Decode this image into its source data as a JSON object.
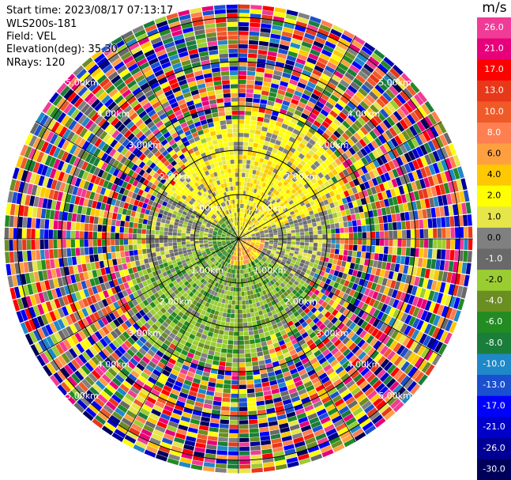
{
  "header": {
    "start_time": "Start time: 2023/08/17 07:13:17",
    "site": "WLS200s-181",
    "field": "Field: VEL",
    "elevation": "Elevation(deg): 35.30",
    "nrays": "NRays: 120"
  },
  "chart_data": {
    "type": "polar-ppi",
    "field": "VEL",
    "units": "m/s",
    "nrays": 120,
    "range_rings_km": [
      1,
      2,
      3,
      4,
      5
    ],
    "ring_labels": [
      "1.00km",
      "2.00km",
      "3.00km",
      "4.00km",
      "5.00km"
    ],
    "max_range_km": 5.3,
    "colorbar": {
      "title": "m/s",
      "ticks": [
        "26.0",
        "21.0",
        "17.0",
        "13.0",
        "10.0",
        "8.0",
        "6.0",
        "4.0",
        "2.0",
        "1.0",
        "0.0",
        "-1.0",
        "-2.0",
        "-4.0",
        "-6.0",
        "-8.0",
        "-10.0",
        "-13.0",
        "-17.0",
        "-21.0",
        "-26.0",
        "-30.0"
      ],
      "colors": [
        "#f03c96",
        "#e8007a",
        "#ff0000",
        "#e8381a",
        "#f05a28",
        "#ff7f50",
        "#ffa040",
        "#ffc800",
        "#ffff00",
        "#e6e64a",
        "#808080",
        "#696969",
        "#9acd32",
        "#6b8e23",
        "#228b22",
        "#1a7e3a",
        "#1e88c8",
        "#1a50d0",
        "#0000ff",
        "#0000c8",
        "#000096",
        "#00005a"
      ]
    },
    "near_field": {
      "north_sector": "positive (yellow/orange) to 2.8 km",
      "south_sector": "negative (green) to 2.5 km",
      "west_sector": "near-zero (grey)",
      "east_sector": "near-zero (grey)"
    }
  }
}
